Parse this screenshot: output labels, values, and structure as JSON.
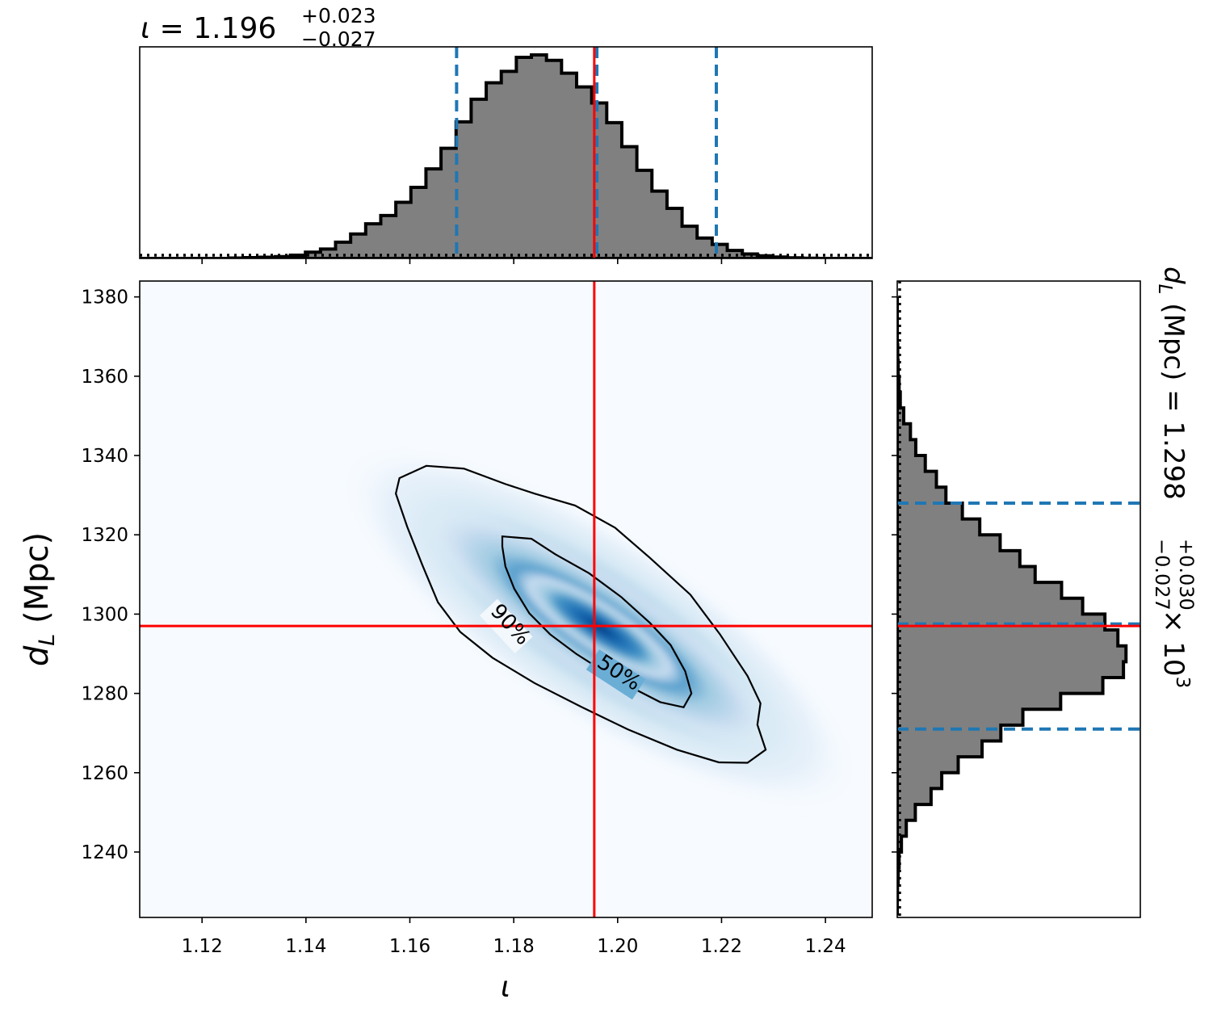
{
  "chart_data": [
    {
      "panel": "top-marginal",
      "type": "histogram",
      "title_param": "ι",
      "title_value": "1.196",
      "title_plus": "+0.023",
      "title_minus": "−0.027",
      "xlim": [
        1.108,
        1.249
      ],
      "bin_edges": [
        1.108,
        1.1109,
        1.1138,
        1.1167,
        1.1196,
        1.1225,
        1.1254,
        1.1283,
        1.1312,
        1.1341,
        1.137,
        1.1399,
        1.1428,
        1.1457,
        1.1486,
        1.1515,
        1.1544,
        1.1573,
        1.1602,
        1.1631,
        1.166,
        1.1689,
        1.1718,
        1.1747,
        1.1776,
        1.1805,
        1.1834,
        1.1863,
        1.1892,
        1.1921,
        1.195,
        1.1979,
        1.2008,
        1.2037,
        1.2066,
        1.2095,
        1.2124,
        1.2153,
        1.2182,
        1.2211,
        1.224,
        1.2269,
        1.2298,
        1.2327,
        1.2356,
        1.2385,
        1.2414,
        1.2443,
        1.2472,
        1.249
      ],
      "counts": [
        0.0,
        0.0,
        0.0,
        0.0,
        0.0,
        0.0,
        0.002,
        0.004,
        0.006,
        0.009,
        0.016,
        0.031,
        0.046,
        0.08,
        0.12,
        0.17,
        0.211,
        0.276,
        0.349,
        0.44,
        0.541,
        0.671,
        0.782,
        0.863,
        0.919,
        0.988,
        1.0,
        0.973,
        0.91,
        0.843,
        0.764,
        0.667,
        0.549,
        0.433,
        0.331,
        0.246,
        0.158,
        0.1,
        0.069,
        0.039,
        0.022,
        0.013,
        0.007,
        0.003,
        0.001,
        0.0,
        0.0,
        0.0,
        0.0
      ],
      "quantile_lines": [
        1.169,
        1.196,
        1.219
      ],
      "truth_line": 1.1955,
      "color_fill": "#808080",
      "color_quantile": "#1f77b4",
      "color_truth": "#ff0000"
    },
    {
      "panel": "joint",
      "type": "heatmap",
      "xlabel": "ι",
      "ylabel": "d",
      "ylabel_sub": "L",
      "ylabel_unit": "(Mpc)",
      "xlim": [
        1.108,
        1.249
      ],
      "ylim": [
        1223.5,
        1384
      ],
      "x_ticks": [
        "1.12",
        "1.14",
        "1.16",
        "1.18",
        "1.20",
        "1.22",
        "1.24"
      ],
      "y_ticks": [
        "1240",
        "1260",
        "1280",
        "1300",
        "1320",
        "1340",
        "1360",
        "1380"
      ],
      "density_center": [
        1.1965,
        1.2967
      ],
      "contour_labels": [
        "90%",
        "50%"
      ],
      "contour_90": [
        [
          1.1632,
          1337.4
        ],
        [
          1.1704,
          1336.7
        ],
        [
          1.1784,
          1332.8
        ],
        [
          1.184,
          1330.4
        ],
        [
          1.1918,
          1327.4
        ],
        [
          1.1995,
          1321.8
        ],
        [
          1.2062,
          1314.2
        ],
        [
          1.214,
          1304.9
        ],
        [
          1.2197,
          1294.9
        ],
        [
          1.225,
          1284.4
        ],
        [
          1.2275,
          1277.5
        ],
        [
          1.2269,
          1272.1
        ],
        [
          1.2285,
          1265.8
        ],
        [
          1.225,
          1262.5
        ],
        [
          1.2195,
          1262.6
        ],
        [
          1.2114,
          1265.8
        ],
        [
          1.202,
          1270.9
        ],
        [
          1.193,
          1276.6
        ],
        [
          1.184,
          1282.6
        ],
        [
          1.1759,
          1289.0
        ],
        [
          1.1697,
          1295.5
        ],
        [
          1.1654,
          1303.0
        ],
        [
          1.1624,
          1312.4
        ],
        [
          1.1595,
          1322.0
        ],
        [
          1.1573,
          1330.4
        ],
        [
          1.158,
          1334.3
        ]
      ],
      "contour_50": [
        [
          1.1778,
          1319.6
        ],
        [
          1.1834,
          1319.0
        ],
        [
          1.188,
          1315.1
        ],
        [
          1.1945,
          1310.3
        ],
        [
          1.2007,
          1304.3
        ],
        [
          1.2062,
          1297.8
        ],
        [
          1.2102,
          1292.2
        ],
        [
          1.213,
          1285.6
        ],
        [
          1.2142,
          1280.0
        ],
        [
          1.2127,
          1276.5
        ],
        [
          1.2082,
          1277.8
        ],
        [
          1.203,
          1281.3
        ],
        [
          1.1975,
          1285.4
        ],
        [
          1.192,
          1290.0
        ],
        [
          1.187,
          1294.9
        ],
        [
          1.183,
          1300.2
        ],
        [
          1.1801,
          1306.4
        ],
        [
          1.1784,
          1312.0
        ],
        [
          1.1778,
          1317.0
        ]
      ],
      "truth_x": 1.1955,
      "truth_y": 1297.0
    },
    {
      "panel": "right-marginal",
      "type": "histogram",
      "title_param": "d",
      "title_sub": "L",
      "title_unit": "(Mpc)",
      "title_value": "1.298",
      "title_plus": "+0.030",
      "title_minus": "−0.027",
      "title_exponent": "× 10",
      "title_power": "3",
      "ylim": [
        1223.5,
        1384
      ],
      "bin_edges": [
        1380.0,
        1376.0,
        1372.0,
        1368.0,
        1364.0,
        1360.0,
        1356.0,
        1352.0,
        1348.0,
        1344.0,
        1340.0,
        1336.0,
        1332.0,
        1328.0,
        1324.0,
        1320.0,
        1316.0,
        1312.0,
        1308.0,
        1304.0,
        1300.0,
        1296.0,
        1292.0,
        1288.0,
        1284.0,
        1280.0,
        1276.0,
        1272.0,
        1268.0,
        1264.0,
        1260.0,
        1256.0,
        1252.0,
        1248.0,
        1244.0,
        1240.0,
        1236.0,
        1232.0,
        1228.0,
        1224.0
      ],
      "counts": [
        0.0,
        0.0,
        0.0,
        0.002,
        0.004,
        0.008,
        0.013,
        0.028,
        0.057,
        0.08,
        0.121,
        0.169,
        0.21,
        0.281,
        0.356,
        0.444,
        0.529,
        0.595,
        0.709,
        0.8,
        0.896,
        0.952,
        0.987,
        0.976,
        0.887,
        0.705,
        0.542,
        0.447,
        0.366,
        0.263,
        0.192,
        0.146,
        0.078,
        0.039,
        0.018,
        0.008,
        0.004,
        0.001,
        0.0
      ],
      "quantile_lines": [
        1328.0,
        1297.5,
        1271.0
      ],
      "truth_line": 1297.0,
      "color_fill": "#808080",
      "color_quantile": "#1f77b4",
      "color_truth": "#ff0000"
    }
  ]
}
